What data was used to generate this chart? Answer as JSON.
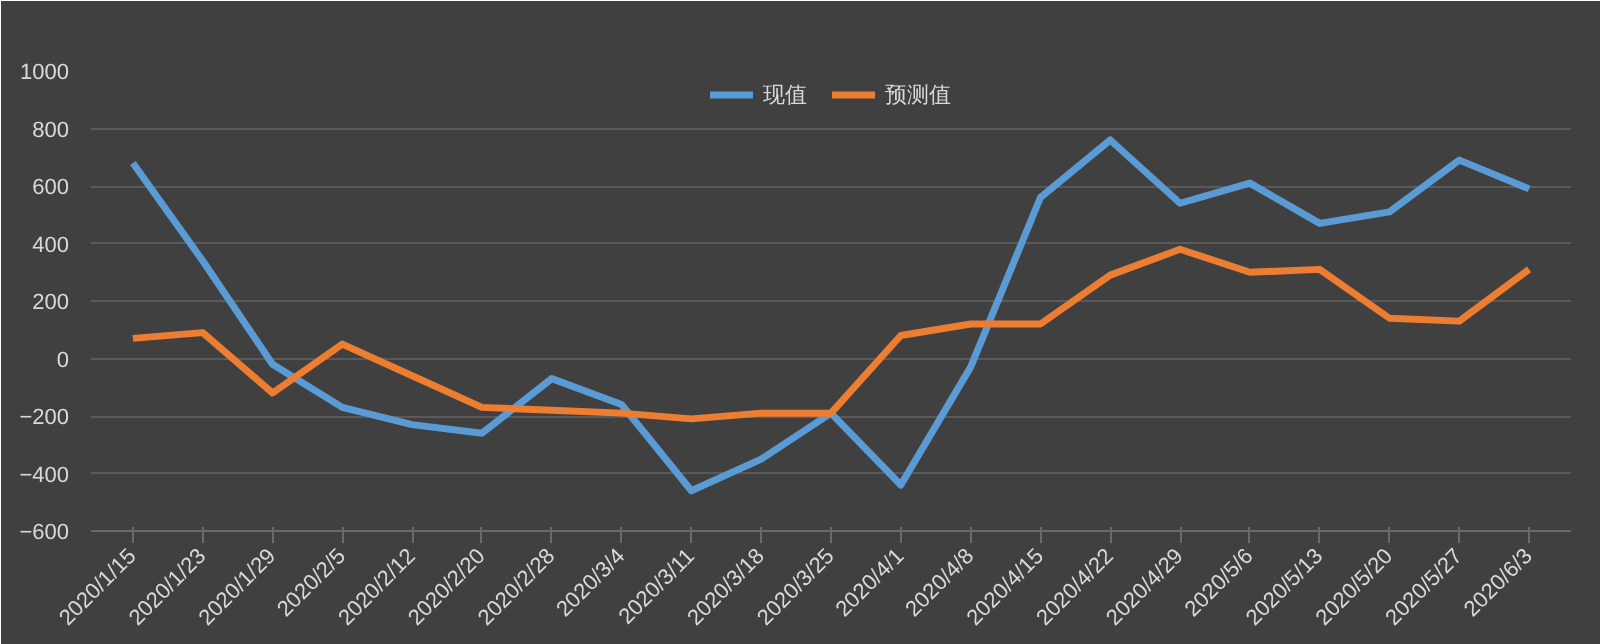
{
  "chart_data": {
    "type": "line",
    "categories": [
      "2020/1/15",
      "2020/1/23",
      "2020/1/29",
      "2020/2/5",
      "2020/2/12",
      "2020/2/20",
      "2020/2/28",
      "2020/3/4",
      "2020/3/11",
      "2020/3/18",
      "2020/3/25",
      "2020/4/1",
      "2020/4/8",
      "2020/4/15",
      "2020/4/22",
      "2020/4/29",
      "2020/5/6",
      "2020/5/13",
      "2020/5/20",
      "2020/5/27",
      "2020/6/3"
    ],
    "series": [
      {
        "name": "现值",
        "color": "#5b9bd5",
        "values": [
          680,
          340,
          -20,
          -170,
          -230,
          -260,
          -70,
          -160,
          -460,
          -350,
          -190,
          -440,
          -30,
          560,
          760,
          540,
          610,
          470,
          510,
          690,
          590
        ]
      },
      {
        "name": "预测值",
        "color": "#ed7d31",
        "values": [
          70,
          90,
          -120,
          50,
          -60,
          -170,
          -180,
          -190,
          -210,
          -190,
          -190,
          80,
          120,
          120,
          290,
          380,
          300,
          310,
          140,
          130,
          310
        ]
      }
    ],
    "ylim": [
      -600,
      1000
    ],
    "yticks": [
      -600,
      -400,
      -200,
      0,
      200,
      400,
      600,
      800,
      1000
    ],
    "grid": "y",
    "legend": "top",
    "marker": "none",
    "line_style": "solid"
  }
}
